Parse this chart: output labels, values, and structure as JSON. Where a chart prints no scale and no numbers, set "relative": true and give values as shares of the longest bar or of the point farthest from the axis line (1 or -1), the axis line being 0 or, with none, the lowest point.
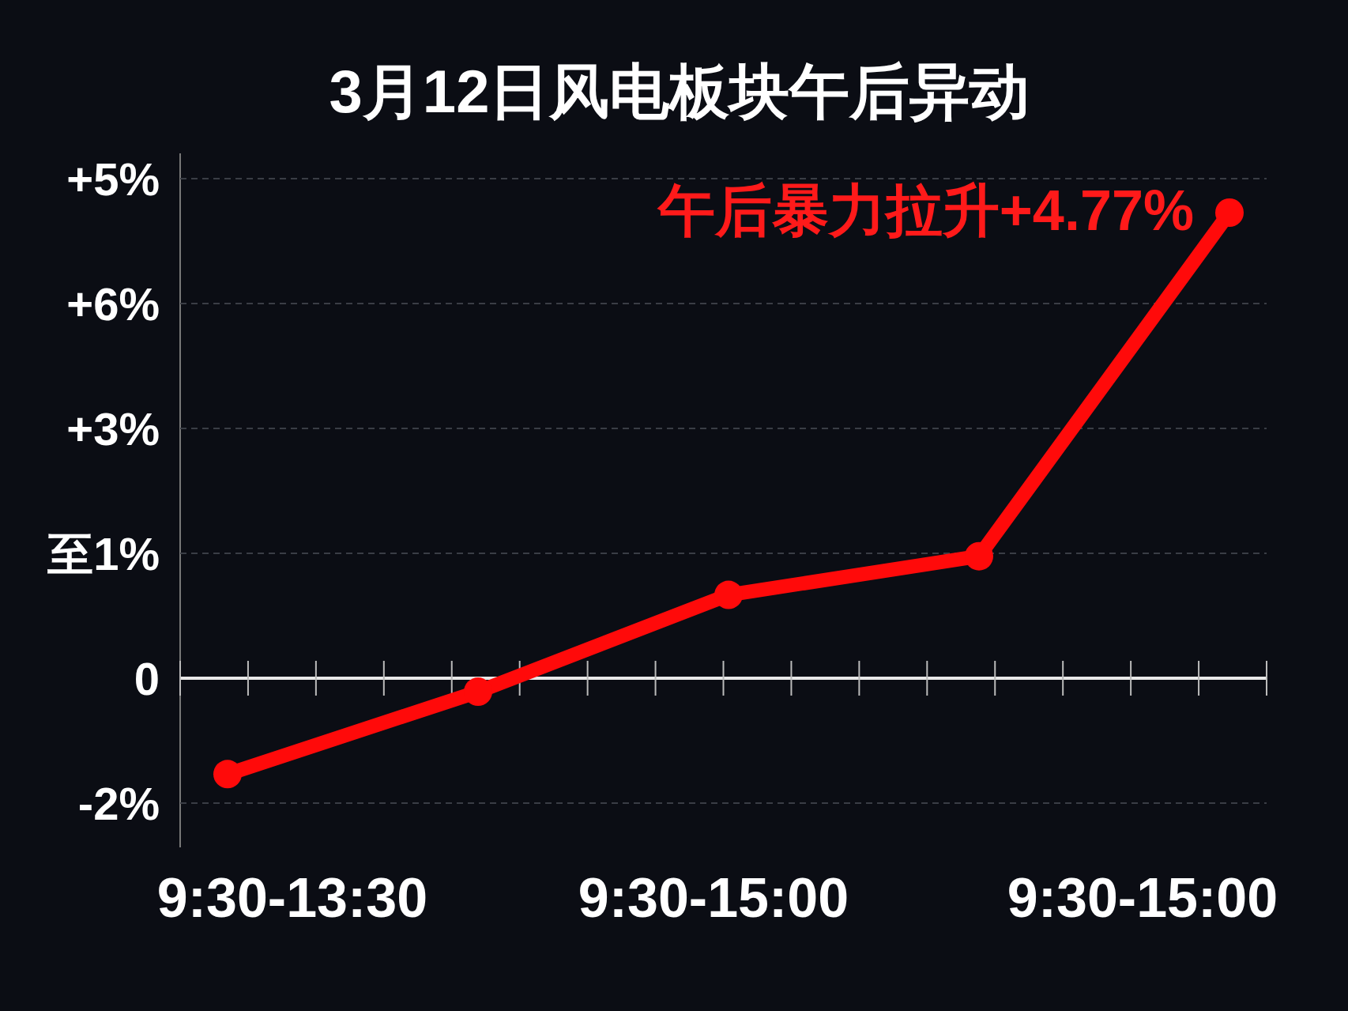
{
  "chart_data": {
    "type": "line",
    "title": "3月12日风电板块午后异动",
    "categories": [
      null,
      null,
      null,
      null,
      null
    ],
    "relative": true,
    "series": [
      {
        "color": "#ff0a0a",
        "values": [
          -0.206,
          -0.029,
          0.179,
          0.262,
          1
        ]
      }
    ],
    "grid": "y",
    "marker": "circle",
    "line_style": "solid",
    "annotations": [
      "午后暴力拉升+4.77%",
      "-2%",
      "0",
      "至1%",
      "+3%",
      "+6%",
      "+5%",
      "9:30-13:30",
      "9:30-15:00",
      "9:30-15:00"
    ]
  }
}
